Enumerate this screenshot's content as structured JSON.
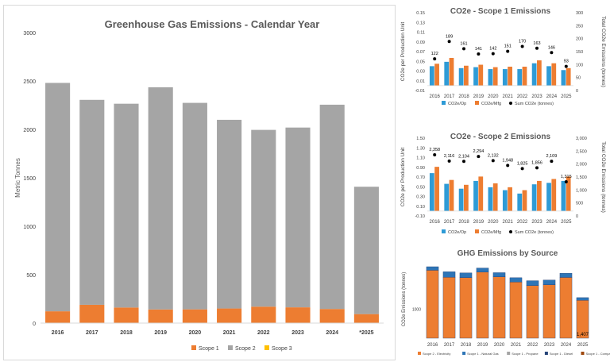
{
  "chart_data": [
    {
      "type": "bar",
      "title": "Greenhouse Gas Emissions - Calendar Year",
      "ylabel": "Metric Tonnes",
      "xlabel": "",
      "ylim": [
        0,
        3000
      ],
      "yticks": [
        "0",
        "500",
        "1000",
        "1500",
        "2000",
        "2500",
        "3000"
      ],
      "categories": [
        "2016",
        "2017",
        "2018",
        "2019",
        "2020",
        "2021",
        "2022",
        "2023",
        "2024",
        "*2025"
      ],
      "stacked": true,
      "series": [
        {
          "name": "Scope 1",
          "color": "#ED7D31",
          "values": [
            122,
            189,
            161,
            141,
            142,
            151,
            170,
            163,
            146,
            93
          ]
        },
        {
          "name": "Scope 2",
          "color": "#A5A5A5",
          "values": [
            2358,
            2116,
            2104,
            2294,
            2132,
            1948,
            1825,
            1856,
            2109,
            1315
          ]
        },
        {
          "name": "Scope 3",
          "color": "#FFC000",
          "values": [
            0,
            0,
            0,
            0,
            0,
            0,
            0,
            0,
            0,
            0
          ]
        }
      ],
      "legend": "bottom",
      "grid": false
    },
    {
      "type": "bar",
      "title": "CO2e - Scope 1 Emissions",
      "ylabel": "CO2e per Production Unit",
      "y2label": "Total CO2e Emissions (tonnes)",
      "ylim": [
        -0.01,
        0.15
      ],
      "yticks": [
        "-0.01",
        "0.01",
        "0.03",
        "0.05",
        "0.07",
        "0.09",
        "0.11",
        "0.13",
        "0.15"
      ],
      "y2lim": [
        0,
        300
      ],
      "y2ticks": [
        "0",
        "50",
        "100",
        "150",
        "200",
        "250",
        "300"
      ],
      "categories": [
        "2016",
        "2017",
        "2018",
        "2019",
        "2020",
        "2021",
        "2022",
        "2023",
        "2024",
        "2025"
      ],
      "series": [
        {
          "name": "CO2e/Op",
          "color": "#2E9BD6",
          "values": [
            0.04,
            0.049,
            0.036,
            0.038,
            0.034,
            0.034,
            0.034,
            0.046,
            0.04,
            0.032
          ]
        },
        {
          "name": "CO2e/Mfg",
          "color": "#ED7D31",
          "values": [
            0.045,
            0.057,
            0.041,
            0.043,
            0.038,
            0.039,
            0.039,
            0.052,
            0.046,
            0.036
          ]
        },
        {
          "name": "Sum CO2e (tonnes)",
          "color": "#000000",
          "type": "scatter",
          "axis": "y2",
          "values": [
            122,
            189,
            161,
            141,
            142,
            151,
            170,
            163,
            146,
            93
          ]
        }
      ],
      "data_labels": [
        "122",
        "189",
        "161",
        "141",
        "142",
        "151",
        "170",
        "163",
        "146",
        "93"
      ],
      "legend": "bottom"
    },
    {
      "type": "bar",
      "title": "CO2e - Scope 2 Emissions",
      "ylabel": "CO2e per Production Unit",
      "y2label": "Total CO2e Emissions (tonnes)",
      "ylim": [
        -0.1,
        1.5
      ],
      "yticks": [
        "-0.10",
        "0.10",
        "0.30",
        "0.50",
        "0.70",
        "0.90",
        "1.10",
        "1.30",
        "1.50"
      ],
      "y2lim": [
        0,
        3000
      ],
      "y2ticks": [
        "0",
        "500",
        "1,000",
        "1,500",
        "2,000",
        "2,500",
        "3,000"
      ],
      "categories": [
        "2016",
        "2017",
        "2018",
        "2019",
        "2020",
        "2021",
        "2022",
        "2023",
        "2024",
        "2025"
      ],
      "series": [
        {
          "name": "CO2e/Op",
          "color": "#2E9BD6",
          "values": [
            0.78,
            0.56,
            0.46,
            0.62,
            0.49,
            0.43,
            0.36,
            0.55,
            0.58,
            0.62
          ]
        },
        {
          "name": "CO2e/Mfg",
          "color": "#ED7D31",
          "values": [
            0.91,
            0.64,
            0.54,
            0.71,
            0.57,
            0.49,
            0.43,
            0.62,
            0.66,
            0.71
          ]
        },
        {
          "name": "Sum CO2e (tonnes)",
          "color": "#000000",
          "type": "scatter",
          "axis": "y2",
          "values": [
            2358,
            2116,
            2104,
            2294,
            2132,
            1948,
            1825,
            1856,
            2109,
            1315
          ]
        }
      ],
      "data_labels": [
        "2,358",
        "2,116",
        "2,104",
        "2,294",
        "2,132",
        "1,948",
        "1,825",
        "1,856",
        "2,109",
        "1,315"
      ],
      "legend": "bottom"
    },
    {
      "type": "bar",
      "title": "GHG Emissions by Source",
      "ylabel": "CO2e Emissions (tonnes)",
      "ylim": [
        0,
        2700
      ],
      "yticks": [
        "1000"
      ],
      "categories": [
        "2016",
        "2017",
        "2018",
        "2019",
        "2020",
        "2021",
        "2022",
        "2023",
        "2024",
        "2025"
      ],
      "stacked": true,
      "series": [
        {
          "name": "Scope 2 - Electricity",
          "color": "#ED7D31",
          "values": [
            2358,
            2116,
            2104,
            2294,
            2132,
            1948,
            1825,
            1856,
            2109,
            1315
          ]
        },
        {
          "name": "Scope 1 - Natural Gas",
          "color": "#2E75B6",
          "values": [
            122,
            189,
            161,
            141,
            142,
            151,
            170,
            163,
            146,
            93
          ]
        },
        {
          "name": "Scope 1 - Propane",
          "color": "#A5A5A5",
          "values": [
            0,
            0,
            0,
            0,
            0,
            0,
            0,
            0,
            0,
            0
          ]
        },
        {
          "name": "Scope 1 - Diesel",
          "color": "#264478",
          "values": [
            0,
            0,
            0,
            0,
            0,
            0,
            0,
            0,
            0,
            0
          ]
        },
        {
          "name": "Scope 1 - Company Vehicle",
          "color": "#9E480E",
          "values": [
            0,
            0,
            0,
            0,
            0,
            0,
            0,
            0,
            0,
            0
          ]
        }
      ],
      "annotations": [
        "1,407"
      ],
      "legend": "bottom"
    }
  ]
}
